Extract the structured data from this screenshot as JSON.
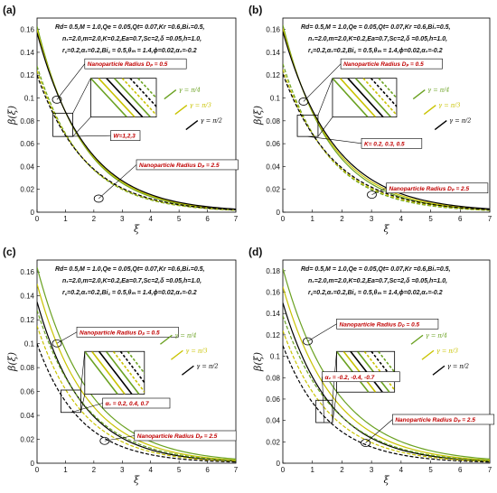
{
  "colors": {
    "green": "#6aa121",
    "olive": "#c9c300",
    "black": "#000000",
    "red": "#c00000"
  },
  "legend": [
    {
      "label": "γ = π/4",
      "color": "#6aa121"
    },
    {
      "label": "γ = π/3",
      "color": "#c9c300"
    },
    {
      "label": "γ = π/2",
      "color": "#000000"
    }
  ],
  "chart_data": [
    {
      "type": "line",
      "panel_label": "(a)",
      "xlabel": "ξ",
      "ylabel": "β(ξ)",
      "xlim": [
        0,
        7
      ],
      "ylim": [
        0,
        0.17
      ],
      "xticks": [
        "0",
        "1",
        "2",
        "3",
        "4",
        "5",
        "6",
        "7"
      ],
      "yticks": [
        "0",
        "0.02",
        "0.04",
        "0.06",
        "0.08",
        "0.1",
        "0.12",
        "0.14",
        "0.16"
      ],
      "param_lines": [
        "Rd= 0.5,M = 1.0,Qe = 0.05,Qt= 0.07,Kr =0.6,Bi₁=0.5,",
        "n₁=2.0,m=2.0,K=0.2,Ea=0.7,Sc=2,δ =0.05,h=1.0,",
        "r꜀=0.2,α₁=0.2,Bi꜀ = 0.5,θₘ = 1.4,ϕ=0.02,α₂=-0.2"
      ],
      "annotations": [
        "Nanoparticle Radius Dₚ = 0.5",
        "W=1,2,3",
        "Nanoparticle Radius Dₚ = 2.5"
      ],
      "series": [
        {
          "group": "solid",
          "y0": [
            0.163,
            0.16,
            0.157
          ],
          "decay": [
            0.62,
            0.6,
            0.58
          ]
        },
        {
          "group": "dashed",
          "y0": [
            0.128,
            0.124,
            0.12
          ],
          "decay": [
            0.62,
            0.6,
            0.58
          ]
        }
      ]
    },
    {
      "type": "line",
      "panel_label": "(b)",
      "xlabel": "ξ",
      "ylabel": "β(ξ)",
      "xlim": [
        0,
        7
      ],
      "ylim": [
        0,
        0.17
      ],
      "xticks": [
        "0",
        "1",
        "2",
        "3",
        "4",
        "5",
        "6",
        "7"
      ],
      "yticks": [
        "0",
        "0.02",
        "0.04",
        "0.06",
        "0.08",
        "0.1",
        "0.12",
        "0.14",
        "0.16"
      ],
      "param_lines": [
        "Rd= 0.5,M = 1.0,Qe = 0.05,Qt= 0.07,Kr =0.6,Bi₁=0.5,",
        "n₁=2.0,m=2.0,K=0.2,Ea=0.7,Sc=2,δ =0.05,h=1.0,",
        "r꜀=0.2,α₁=0.2,Bi꜀ = 0.5,θₘ = 1.4,ϕ=0.02,α₂=-0.2"
      ],
      "annotations": [
        "Nanoparticle Radius Dₚ = 0.5",
        "K= 0.2, 0.3, 0.5",
        "Nanoparticle Radius Dₚ = 2.5"
      ],
      "series": [
        {
          "group": "solid",
          "y0": [
            0.164,
            0.161,
            0.158
          ],
          "decay": [
            0.63,
            0.6,
            0.57
          ]
        },
        {
          "group": "dashed",
          "y0": [
            0.13,
            0.125,
            0.121
          ],
          "decay": [
            0.63,
            0.6,
            0.57
          ]
        }
      ]
    },
    {
      "type": "line",
      "panel_label": "(c)",
      "xlabel": "ξ",
      "ylabel": "β(ξ)",
      "xlim": [
        0,
        7
      ],
      "ylim": [
        0,
        0.17
      ],
      "xticks": [
        "0",
        "1",
        "2",
        "3",
        "4",
        "5",
        "6",
        "7"
      ],
      "yticks": [
        "0",
        "0.02",
        "0.04",
        "0.06",
        "0.08",
        "0.1",
        "0.12",
        "0.14",
        "0.16"
      ],
      "param_lines": [
        "Rd= 0.5,M = 1.0,Qe = 0.05,Qt= 0.07,Kr =0.6,Bi₁=0.5,",
        "n₁=2.0,m=2.0,K=0.2,Ea=0.7,Sc=2,δ =0.05,h=1.0,",
        "r꜀=0.2,α₁=0.2,Bi꜀ = 0.5,θₘ = 1.4,ϕ=0.02,α₂=-0.2"
      ],
      "annotations": [
        "Nanoparticle Radius Dₚ = 0.5",
        "α₁ = 0.2, 0.4, 0.7",
        "Nanoparticle Radius Dₚ = 2.5"
      ],
      "series": [
        {
          "group": "solid",
          "y0": [
            0.164,
            0.15,
            0.135
          ],
          "decay": [
            0.55,
            0.58,
            0.62
          ]
        },
        {
          "group": "dashed",
          "y0": [
            0.128,
            0.115,
            0.1
          ],
          "decay": [
            0.58,
            0.62,
            0.66
          ]
        }
      ]
    },
    {
      "type": "line",
      "panel_label": "(d)",
      "xlabel": "ξ",
      "ylabel": "β(ξ)",
      "xlim": [
        0,
        7
      ],
      "ylim": [
        0,
        0.19
      ],
      "xticks": [
        "0",
        "1",
        "2",
        "3",
        "4",
        "5",
        "6",
        "7"
      ],
      "yticks": [
        "0",
        "0.02",
        "0.04",
        "0.06",
        "0.08",
        "0.1",
        "0.12",
        "0.14",
        "0.16",
        "0.18"
      ],
      "param_lines": [
        "Rd= 0.5,M = 1.0,Qe = 0.05,Qt= 0.07,Kr =0.6,Bi₁=0.5,",
        "n₁=2.0,m=2.0,K=0.2,Ea=0.7,Sc=2,δ =0.05,h=1.0,",
        "r꜀=0.2,α₁=0.2,Bi꜀ = 0.5,θₘ = 1.4,ϕ=0.02,α₂=-0.2"
      ],
      "annotations": [
        "Nanoparticle Radius Dₚ = 0.5",
        "α₂ = -0.2, -0.4, -0.7",
        "Nanoparticle Radius Dₚ = 2.5"
      ],
      "series": [
        {
          "group": "solid",
          "y0": [
            0.182,
            0.165,
            0.15
          ],
          "decay": [
            0.55,
            0.58,
            0.62
          ]
        },
        {
          "group": "dashed",
          "y0": [
            0.138,
            0.124,
            0.11
          ],
          "decay": [
            0.58,
            0.62,
            0.66
          ]
        }
      ]
    }
  ]
}
